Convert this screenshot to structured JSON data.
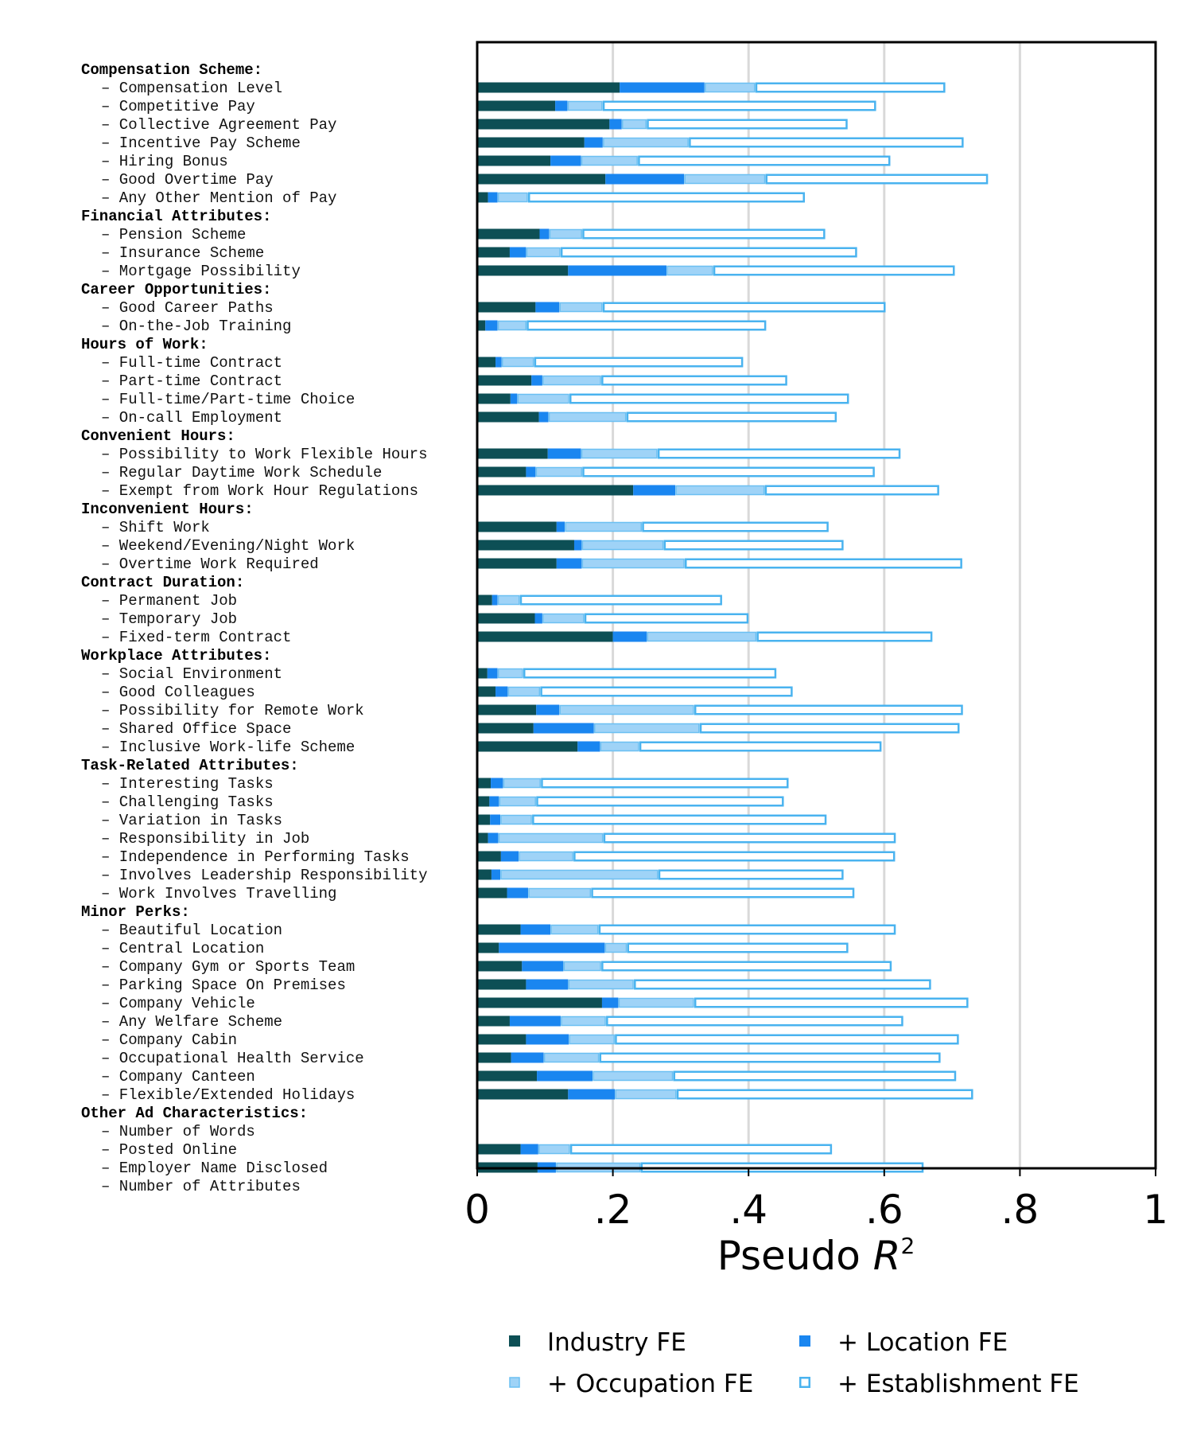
{
  "chart_data": {
    "type": "bar",
    "orientation": "horizontal",
    "stacked": "cumulative",
    "xlim": [
      0,
      1
    ],
    "xticks": [
      0,
      0.2,
      0.4,
      0.6,
      0.8,
      1
    ],
    "xtick_labels": [
      "0",
      ".2",
      ".4",
      ".6",
      ".8",
      "1"
    ],
    "xlabel_main": "Pseudo ",
    "xlabel_var": "R",
    "xlabel_sup": "2",
    "grid": "vertical",
    "legend_position": "bottom",
    "series": [
      {
        "name": "Industry FE",
        "color": "#0d4f55",
        "style": "filled"
      },
      {
        "name": "+ Location FE",
        "color": "#1a86f0",
        "style": "filled"
      },
      {
        "name": "+ Occupation FE",
        "color": "#9fd3f7",
        "style": "filled-outline"
      },
      {
        "name": "+ Establishment FE",
        "color": "#4ab3ef",
        "style": "outline"
      }
    ],
    "rows": [
      {
        "label": "Compensation Scheme:",
        "group": true
      },
      {
        "label": "– Compensation Level",
        "values": [
          0.21,
          0.335,
          0.41,
          0.69
        ]
      },
      {
        "label": "– Competitive Pay",
        "values": [
          0.115,
          0.133,
          0.185,
          0.588
        ]
      },
      {
        "label": "– Collective Agreement Pay",
        "values": [
          0.195,
          0.213,
          0.25,
          0.546
        ]
      },
      {
        "label": "– Incentive Pay Scheme",
        "values": [
          0.158,
          0.185,
          0.312,
          0.717
        ]
      },
      {
        "label": "– Hiring Bonus",
        "values": [
          0.108,
          0.153,
          0.237,
          0.609
        ]
      },
      {
        "label": "– Good Overtime Pay",
        "values": [
          0.189,
          0.305,
          0.425,
          0.753
        ]
      },
      {
        "label": "– Any Other Mention of Pay",
        "values": [
          0.016,
          0.03,
          0.075,
          0.483
        ]
      },
      {
        "label": "Financial Attributes:",
        "group": true
      },
      {
        "label": "– Pension Scheme",
        "values": [
          0.092,
          0.106,
          0.155,
          0.513
        ]
      },
      {
        "label": "– Insurance Scheme",
        "values": [
          0.048,
          0.072,
          0.123,
          0.56
        ]
      },
      {
        "label": "– Mortgage Possibility",
        "values": [
          0.134,
          0.279,
          0.348,
          0.704
        ]
      },
      {
        "label": "Career Opportunities:",
        "group": true
      },
      {
        "label": "– Good Career Paths",
        "values": [
          0.086,
          0.121,
          0.185,
          0.602
        ]
      },
      {
        "label": "– On-the-Job Training",
        "values": [
          0.012,
          0.03,
          0.073,
          0.426
        ]
      },
      {
        "label": "Hours of Work:",
        "group": true
      },
      {
        "label": "– Full-time Contract",
        "values": [
          0.027,
          0.036,
          0.084,
          0.392
        ]
      },
      {
        "label": "– Part-time Contract",
        "values": [
          0.08,
          0.096,
          0.183,
          0.457
        ]
      },
      {
        "label": "– Full-time/Part-time Choice",
        "values": [
          0.049,
          0.059,
          0.136,
          0.548
        ]
      },
      {
        "label": "– On-call Employment",
        "values": [
          0.091,
          0.105,
          0.22,
          0.53
        ]
      },
      {
        "label": "Convenient Hours:",
        "group": true
      },
      {
        "label": "– Possibility to Work Flexible Hours",
        "values": [
          0.104,
          0.153,
          0.266,
          0.624
        ]
      },
      {
        "label": "– Regular Daytime Work Schedule",
        "values": [
          0.072,
          0.086,
          0.155,
          0.586
        ]
      },
      {
        "label": "– Exempt from Work Hour Regulations",
        "values": [
          0.23,
          0.292,
          0.424,
          0.681
        ]
      },
      {
        "label": "Inconvenient Hours:",
        "group": true
      },
      {
        "label": "– Shift Work",
        "values": [
          0.117,
          0.129,
          0.243,
          0.518
        ]
      },
      {
        "label": "– Weekend/Evening/Night Work",
        "values": [
          0.143,
          0.154,
          0.275,
          0.54
        ]
      },
      {
        "label": "– Overtime Work Required",
        "values": [
          0.117,
          0.154,
          0.306,
          0.715
        ]
      },
      {
        "label": "Contract Duration:",
        "group": true
      },
      {
        "label": "– Permanent Job",
        "values": [
          0.022,
          0.03,
          0.063,
          0.361
        ]
      },
      {
        "label": "– Temporary Job",
        "values": [
          0.085,
          0.096,
          0.158,
          0.4
        ]
      },
      {
        "label": "– Fixed-term Contract",
        "values": [
          0.2,
          0.25,
          0.412,
          0.671
        ]
      },
      {
        "label": "Workplace Attributes:",
        "group": true
      },
      {
        "label": "– Social Environment",
        "values": [
          0.015,
          0.03,
          0.068,
          0.441
        ]
      },
      {
        "label": "– Good Colleagues",
        "values": [
          0.027,
          0.045,
          0.093,
          0.465
        ]
      },
      {
        "label": "– Possibility for Remote Work",
        "values": [
          0.087,
          0.121,
          0.32,
          0.716
        ]
      },
      {
        "label": "– Shared Office Space",
        "values": [
          0.083,
          0.172,
          0.328,
          0.711
        ]
      },
      {
        "label": "– Inclusive Work-life Scheme",
        "values": [
          0.148,
          0.181,
          0.239,
          0.596
        ]
      },
      {
        "label": "Task-Related Attributes:",
        "group": true
      },
      {
        "label": "– Interesting Tasks",
        "values": [
          0.02,
          0.038,
          0.094,
          0.459
        ]
      },
      {
        "label": "– Challenging Tasks",
        "values": [
          0.018,
          0.032,
          0.087,
          0.452
        ]
      },
      {
        "label": "– Variation in Tasks",
        "values": [
          0.019,
          0.034,
          0.081,
          0.515
        ]
      },
      {
        "label": "– Responsibility in Job",
        "values": [
          0.016,
          0.031,
          0.186,
          0.617
        ]
      },
      {
        "label": "– Independence in Performing Tasks",
        "values": [
          0.035,
          0.061,
          0.142,
          0.616
        ]
      },
      {
        "label": "– Involves Leadership Responsibility",
        "values": [
          0.021,
          0.034,
          0.267,
          0.54
        ]
      },
      {
        "label": "– Work Involves Travelling",
        "values": [
          0.044,
          0.075,
          0.168,
          0.556
        ]
      },
      {
        "label": "Minor Perks:",
        "group": true
      },
      {
        "label": "– Beautiful Location",
        "values": [
          0.064,
          0.108,
          0.179,
          0.617
        ]
      },
      {
        "label": "– Central Location",
        "values": [
          0.032,
          0.188,
          0.221,
          0.547
        ]
      },
      {
        "label": "– Company Gym or Sports Team",
        "values": [
          0.066,
          0.127,
          0.183,
          0.611
        ]
      },
      {
        "label": "– Parking Space On Premises",
        "values": [
          0.072,
          0.134,
          0.231,
          0.669
        ]
      },
      {
        "label": "– Company Vehicle",
        "values": [
          0.184,
          0.208,
          0.32,
          0.724
        ]
      },
      {
        "label": "– Any Welfare Scheme",
        "values": [
          0.048,
          0.123,
          0.19,
          0.628
        ]
      },
      {
        "label": "– Company Cabin",
        "values": [
          0.072,
          0.135,
          0.203,
          0.71
        ]
      },
      {
        "label": "– Occupational Health Service",
        "values": [
          0.05,
          0.098,
          0.18,
          0.683
        ]
      },
      {
        "label": "– Company Canteen",
        "values": [
          0.088,
          0.17,
          0.289,
          0.706
        ]
      },
      {
        "label": "– Flexible/Extended Holidays",
        "values": [
          0.134,
          0.203,
          0.294,
          0.731
        ]
      },
      {
        "label": "Other Ad Characteristics:",
        "group": true
      },
      {
        "label": "– Number of Words",
        "values": null
      },
      {
        "label": "– Posted Online",
        "values": [
          0.064,
          0.09,
          0.137,
          0.523
        ]
      },
      {
        "label": "– Employer Name Disclosed",
        "values": [
          0.089,
          0.116,
          0.241,
          0.658
        ]
      },
      {
        "label": "– Number of Attributes",
        "values": null
      }
    ]
  }
}
